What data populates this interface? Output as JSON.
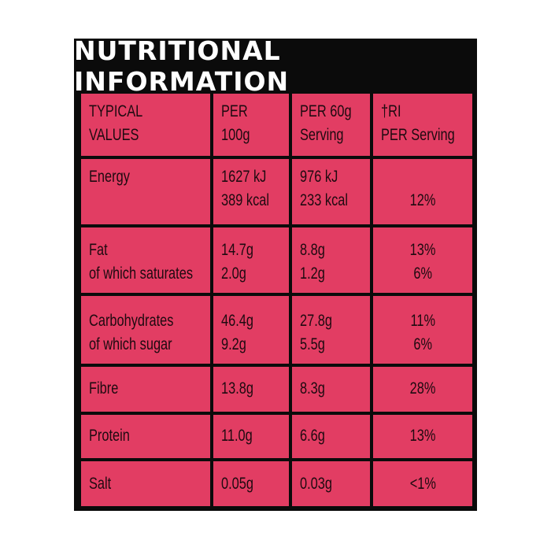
{
  "title": "NUTRITIONAL INFORMATION",
  "colors": {
    "background": "#0b0b0b",
    "cell": "#e23d63",
    "title_text": "#ffffff"
  },
  "header": {
    "col1": [
      "TYPICAL",
      "VALUES"
    ],
    "col2": [
      "PER",
      "100g"
    ],
    "col3": [
      "PER 60g",
      "Serving"
    ],
    "col4": [
      "†RI",
      "PER Serving"
    ]
  },
  "rows": [
    {
      "nutrient": [
        "Energy"
      ],
      "per100": [
        "1627 kJ",
        "389 kcal"
      ],
      "perServing": [
        "976 kJ",
        "233 kcal"
      ],
      "ri": [
        "12%"
      ]
    },
    {
      "nutrient": [
        "Fat",
        "of which saturates"
      ],
      "per100": [
        "14.7g",
        "2.0g"
      ],
      "perServing": [
        "8.8g",
        "1.2g"
      ],
      "ri": [
        "13%",
        "6%"
      ]
    },
    {
      "nutrient": [
        "Carbohydrates",
        "of which sugar"
      ],
      "per100": [
        "46.4g",
        "9.2g"
      ],
      "perServing": [
        "27.8g",
        "5.5g"
      ],
      "ri": [
        "11%",
        "6%"
      ]
    },
    {
      "nutrient": [
        "Fibre"
      ],
      "per100": [
        "13.8g"
      ],
      "perServing": [
        "8.3g"
      ],
      "ri": [
        "28%"
      ]
    },
    {
      "nutrient": [
        "Protein"
      ],
      "per100": [
        "11.0g"
      ],
      "perServing": [
        "6.6g"
      ],
      "ri": [
        "13%"
      ]
    },
    {
      "nutrient": [
        "Salt"
      ],
      "per100": [
        "0.05g"
      ],
      "perServing": [
        "0.03g"
      ],
      "ri": [
        "<1%"
      ]
    }
  ]
}
